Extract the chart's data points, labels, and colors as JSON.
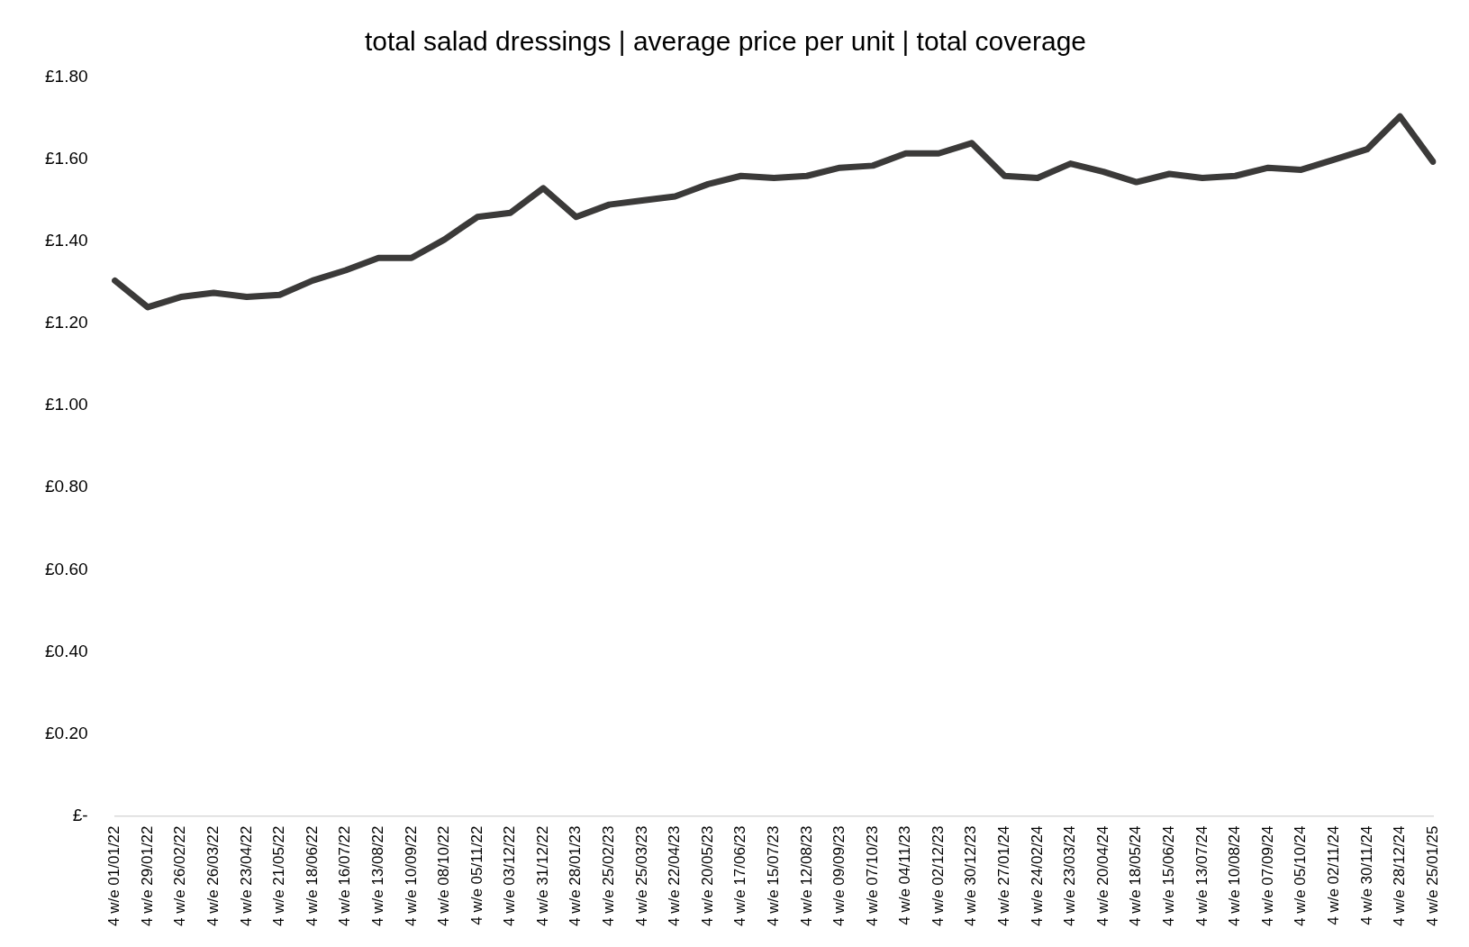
{
  "chart_data": {
    "type": "line",
    "title": "total salad dressings | average price per unit | total coverage",
    "categories": [
      "4 w/e 01/01/22",
      "4 w/e 29/01/22",
      "4 w/e 26/02/22",
      "4 w/e 26/03/22",
      "4 w/e 23/04/22",
      "4 w/e 21/05/22",
      "4 w/e 18/06/22",
      "4 w/e 16/07/22",
      "4 w/e 13/08/22",
      "4 w/e 10/09/22",
      "4 w/e 08/10/22",
      "4 w/e 05/11/22",
      "4 w/e 03/12/22",
      "4 w/e 31/12/22",
      "4 w/e 28/01/23",
      "4 w/e 25/02/23",
      "4 w/e 25/03/23",
      "4 w/e 22/04/23",
      "4 w/e 20/05/23",
      "4 w/e 17/06/23",
      "4 w/e 15/07/23",
      "4 w/e 12/08/23",
      "4 w/e 09/09/23",
      "4 w/e 07/10/23",
      "4 w/e 04/11/23",
      "4 w/e 02/12/23",
      "4 w/e 30/12/23",
      "4 w/e 27/01/24",
      "4 w/e 24/02/24",
      "4 w/e 23/03/24",
      "4 w/e 20/04/24",
      "4 w/e 18/05/24",
      "4 w/e 15/06/24",
      "4 w/e 13/07/24",
      "4 w/e 10/08/24",
      "4 w/e 07/09/24",
      "4 w/e 05/10/24",
      "4 w/e 02/11/24",
      "4 w/e 30/11/24",
      "4 w/e 28/12/24",
      "4 w/e 25/01/25"
    ],
    "series": [
      {
        "color": "#3b3a39",
        "values": [
          1.305,
          1.24,
          1.265,
          1.275,
          1.265,
          1.27,
          1.305,
          1.33,
          1.36,
          1.36,
          1.405,
          1.46,
          1.47,
          1.53,
          1.46,
          1.49,
          1.5,
          1.51,
          1.54,
          1.56,
          1.555,
          1.56,
          1.58,
          1.585,
          1.615,
          1.615,
          1.64,
          1.56,
          1.555,
          1.59,
          1.57,
          1.545,
          1.565,
          1.555,
          1.56,
          1.58,
          1.575,
          1.6,
          1.625,
          1.705,
          1.595
        ]
      }
    ],
    "ylim": [
      0,
      1.8
    ],
    "yticks": [
      {
        "value": 0,
        "label": "£-"
      },
      {
        "value": 0.2,
        "label": "£0.20"
      },
      {
        "value": 0.4,
        "label": "£0.40"
      },
      {
        "value": 0.6,
        "label": "£0.60"
      },
      {
        "value": 0.8,
        "label": "£0.80"
      },
      {
        "value": 1,
        "label": "£1.00"
      },
      {
        "value": 1.2,
        "label": "£1.20"
      },
      {
        "value": 1.4,
        "label": "£1.40"
      },
      {
        "value": 1.6,
        "label": "£1.60"
      },
      {
        "value": 1.8,
        "label": "£1.80"
      }
    ],
    "grid": false,
    "legend": false,
    "marker": "none",
    "line_style": "solid"
  }
}
